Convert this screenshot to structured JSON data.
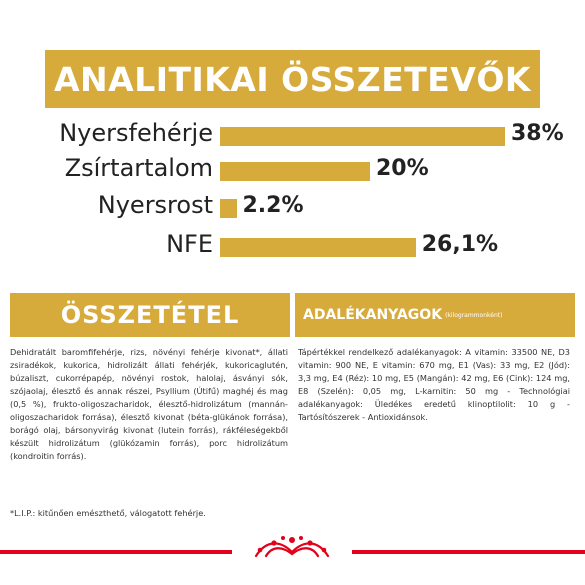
{
  "banner": {
    "title": "ANALITIKAI ÖSSZETEVŐK"
  },
  "chart_data": {
    "type": "bar",
    "title": "ANALITIKAI ÖSSZETEVŐK",
    "categories": [
      "Nyersfehérje",
      "Zsírtartalom",
      "Nyersrost",
      "NFE"
    ],
    "values": [
      38,
      20,
      2.2,
      26.1
    ],
    "value_labels": [
      "38%",
      "20%",
      "2.2%",
      "26,1%"
    ],
    "unit": "%",
    "orientation": "horizontal",
    "color": "#d7aa3c"
  },
  "composition": {
    "title": "ÖSSZETÉTEL",
    "text": "Dehidratált baromfifehérje, rizs, növényi fehérje kivonat*, állati zsiradékok, kukorica, hidrolizált állati fehérjék, kukoricaglutén, búzaliszt, cukorrépapép, növényi rostok, halolaj, ásványi sók, szójaolaj, élesztő és annak részei, Psyllium (Útifű) maghéj és mag (0,5 %), frukto-oligoszacharidok, élesztő-hidrolizátum (mannán-oligoszacharidok forrása), élesztő kivonat (béta-glükánok forrása), borágó olaj, bársonyvirág kivonat (lutein forrás), rákféleségekből készült hidrolizátum (glükózamin forrás), porc hidrolizátum (kondroitin forrás).",
    "note": "*L.I.P.: kitűnően emészthető, válogatott fehérje."
  },
  "additives": {
    "title": "ADALÉKANYAGOK",
    "subtitle": "(kilogrammonként)",
    "text": "Tápértékkel rendelkező adalékanyagok: A vitamin: 33500 NE, D3 vitamin: 900 NE, E vitamin: 670 mg, E1 (Vas): 33 mg, E2 (Jód): 3,3 mg, E4 (Réz): 10 mg, E5 (Mangán): 42 mg, E6 (Cink): 124 mg, E8 (Szelén): 0,05 mg, L-karnitin: 50 mg - Technológiai adalékanyagok: Üledékes eredetű klinoptilolit: 10 g - Tartósítószerek - Antioxidánsok."
  },
  "colors": {
    "accent": "#d7aa3c",
    "brand_red": "#e2001a"
  },
  "footer": {
    "logo": "crown-logo-icon"
  }
}
